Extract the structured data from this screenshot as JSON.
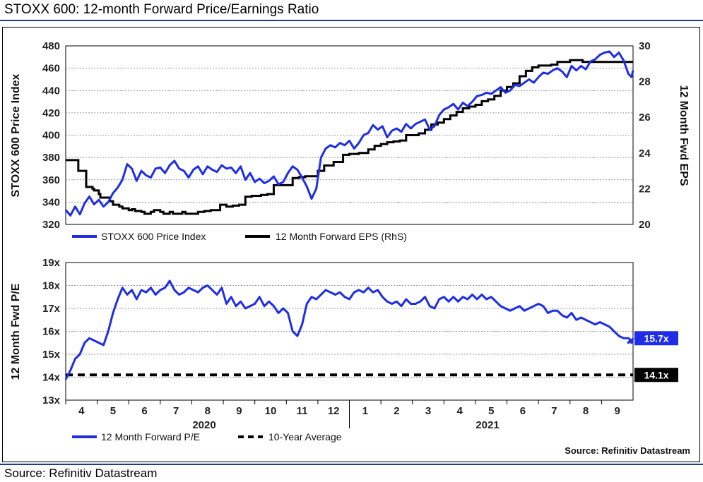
{
  "title": "STOXX 600: 12-month Forward Price/Earnings Ratio",
  "footer_source": "Source: Refinitiv Datastream",
  "inner_source": "Source: Refinitiv Datastream",
  "colors": {
    "price": "#1f2ee6",
    "eps": "#000000",
    "pe": "#1f2ee6",
    "avg": "#000000",
    "rule": "#1f3a93",
    "callout_blue": "#1f2ee6",
    "callout_black": "#000000"
  },
  "chart_data": [
    {
      "type": "line",
      "ylabel_left": "STOXX 600 Price Index",
      "ylabel_right": "12 Month Fwd EPS",
      "ylim_left": [
        320,
        480
      ],
      "ylim_right": [
        20,
        30
      ],
      "yticks_left": [
        "480",
        "460",
        "440",
        "420",
        "400",
        "380",
        "360",
        "340",
        "320"
      ],
      "yticks_right": [
        "30",
        "28",
        "26",
        "24",
        "22",
        "20"
      ],
      "xlim": [
        0,
        18
      ],
      "grid": true,
      "legend": "bottom-left",
      "series": [
        {
          "name": "STOXX 600 Price Index",
          "axis": "left",
          "x": [
            0.0,
            0.15,
            0.3,
            0.45,
            0.6,
            0.75,
            0.9,
            1.05,
            1.2,
            1.35,
            1.5,
            1.65,
            1.8,
            1.95,
            2.1,
            2.25,
            2.4,
            2.55,
            2.7,
            2.85,
            3.0,
            3.15,
            3.3,
            3.45,
            3.6,
            3.75,
            3.9,
            4.05,
            4.2,
            4.35,
            4.5,
            4.65,
            4.8,
            4.95,
            5.1,
            5.25,
            5.4,
            5.55,
            5.7,
            5.85,
            6.0,
            6.15,
            6.3,
            6.45,
            6.6,
            6.75,
            6.9,
            7.05,
            7.2,
            7.35,
            7.5,
            7.65,
            7.8,
            7.95,
            8.1,
            8.25,
            8.4,
            8.55,
            8.7,
            8.85,
            9.0,
            9.15,
            9.3,
            9.45,
            9.6,
            9.75,
            9.9,
            10.05,
            10.2,
            10.35,
            10.5,
            10.65,
            10.8,
            10.95,
            11.1,
            11.25,
            11.4,
            11.55,
            11.7,
            11.85,
            12.0,
            12.15,
            12.3,
            12.45,
            12.6,
            12.75,
            12.9,
            13.05,
            13.2,
            13.35,
            13.5,
            13.65,
            13.8,
            13.95,
            14.1,
            14.25,
            14.4,
            14.55,
            14.7,
            14.85,
            15.0,
            15.15,
            15.3,
            15.45,
            15.6,
            15.75,
            15.9,
            16.05,
            16.2,
            16.35,
            16.5,
            16.65,
            16.8,
            16.95,
            17.1,
            17.25,
            17.4,
            17.55,
            17.7,
            17.85
          ],
          "values": [
            333,
            328,
            336,
            329,
            339,
            345,
            338,
            342,
            336,
            340,
            348,
            353,
            360,
            374,
            370,
            359,
            368,
            364,
            362,
            370,
            371,
            366,
            373,
            377,
            370,
            368,
            362,
            369,
            372,
            365,
            372,
            369,
            367,
            373,
            370,
            371,
            366,
            372,
            360,
            366,
            358,
            361,
            357,
            359,
            363,
            356,
            358,
            366,
            372,
            369,
            362,
            354,
            343,
            352,
            380,
            388,
            391,
            389,
            393,
            391,
            395,
            388,
            393,
            400,
            402,
            409,
            405,
            408,
            398,
            404,
            406,
            403,
            410,
            406,
            410,
            412,
            414,
            405,
            408,
            418,
            423,
            425,
            428,
            423,
            429,
            426,
            430,
            435,
            436,
            438,
            437,
            440,
            443,
            438,
            440,
            445,
            444,
            447,
            450,
            447,
            452,
            456,
            455,
            458,
            460,
            457,
            452,
            462,
            458,
            462,
            459,
            466,
            468,
            472,
            474,
            475,
            470,
            474,
            467,
            455
          ],
          "x_extra": [
            17.95,
            18.0
          ],
          "values_extra": [
            452,
            458
          ]
        },
        {
          "name": "12 Month Forward EPS (RhS)",
          "axis": "right",
          "x": [
            0.0,
            0.35,
            0.4,
            0.6,
            0.65,
            0.85,
            0.9,
            1.05,
            1.1,
            1.4,
            1.5,
            1.7,
            1.8,
            2.0,
            2.1,
            2.2,
            2.4,
            2.5,
            2.7,
            2.8,
            3.0,
            3.1,
            3.3,
            3.4,
            3.7,
            3.8,
            4.0,
            4.2,
            4.4,
            4.6,
            4.8,
            4.9,
            5.1,
            5.3,
            5.5,
            5.7,
            5.9,
            6.0,
            6.2,
            6.4,
            6.6,
            6.8,
            7.0,
            7.2,
            7.4,
            7.6,
            7.8,
            8.0,
            8.2,
            8.5,
            8.8,
            9.0,
            9.3,
            9.6,
            9.8,
            10.0,
            10.2,
            10.4,
            10.6,
            10.8,
            11.0,
            11.2,
            11.4,
            11.6,
            11.8,
            12.0,
            12.2,
            12.4,
            12.6,
            12.8,
            13.0,
            13.2,
            13.4,
            13.6,
            13.8,
            14.0,
            14.2,
            14.4,
            14.6,
            14.8,
            15.0,
            15.2,
            15.4,
            15.6,
            15.8,
            16.0,
            16.2,
            16.4,
            16.6,
            16.8,
            17.0,
            17.2,
            17.4,
            17.6,
            17.8,
            18.0
          ],
          "values": [
            23.6,
            23.6,
            23.0,
            23.0,
            22.1,
            22.0,
            21.9,
            21.7,
            21.5,
            21.3,
            21.1,
            21.0,
            20.9,
            20.8,
            20.85,
            20.75,
            20.7,
            20.6,
            20.7,
            20.8,
            20.7,
            20.6,
            20.7,
            20.6,
            20.7,
            20.6,
            20.6,
            20.7,
            20.75,
            20.8,
            20.8,
            21.1,
            21.0,
            21.05,
            21.1,
            21.55,
            21.6,
            21.6,
            21.65,
            21.7,
            22.2,
            22.2,
            22.2,
            22.6,
            22.65,
            22.7,
            22.7,
            23.0,
            23.3,
            23.5,
            23.9,
            23.95,
            24.0,
            24.2,
            24.4,
            24.5,
            24.6,
            24.65,
            24.7,
            25.0,
            25.0,
            25.1,
            25.3,
            25.6,
            25.7,
            25.9,
            26.1,
            26.3,
            26.5,
            26.6,
            26.7,
            26.9,
            27.0,
            27.2,
            27.5,
            27.7,
            27.9,
            28.3,
            28.6,
            28.8,
            28.9,
            28.9,
            28.95,
            29.1,
            29.1,
            29.2,
            29.2,
            29.1,
            29.1,
            29.1,
            29.1,
            29.1,
            29.1,
            29.1,
            29.1,
            29.1
          ]
        }
      ]
    },
    {
      "type": "line",
      "ylabel": "12 Month Fwd P/E",
      "ylim": [
        13,
        19
      ],
      "yticks": [
        "19x",
        "18x",
        "17x",
        "16x",
        "15x",
        "14x",
        "13x"
      ],
      "xlim": [
        0,
        18
      ],
      "xticks": [
        "4",
        "5",
        "6",
        "7",
        "8",
        "9",
        "10",
        "11",
        "12",
        "1",
        "2",
        "3",
        "4",
        "5",
        "6",
        "7",
        "8",
        "9"
      ],
      "year_labels": [
        "2020",
        "2021"
      ],
      "legend": "bottom-left",
      "series": [
        {
          "name": "12 Month Forward P/E",
          "x": [
            0.0,
            0.15,
            0.3,
            0.45,
            0.6,
            0.75,
            0.9,
            1.05,
            1.2,
            1.35,
            1.5,
            1.65,
            1.8,
            1.95,
            2.1,
            2.25,
            2.4,
            2.55,
            2.7,
            2.85,
            3.0,
            3.15,
            3.3,
            3.45,
            3.6,
            3.75,
            3.9,
            4.05,
            4.2,
            4.35,
            4.5,
            4.65,
            4.8,
            4.95,
            5.1,
            5.25,
            5.4,
            5.55,
            5.7,
            5.85,
            6.0,
            6.15,
            6.3,
            6.45,
            6.6,
            6.75,
            6.9,
            7.05,
            7.2,
            7.35,
            7.5,
            7.65,
            7.8,
            7.95,
            8.1,
            8.25,
            8.4,
            8.55,
            8.7,
            8.85,
            9.0,
            9.15,
            9.3,
            9.45,
            9.6,
            9.75,
            9.9,
            10.05,
            10.2,
            10.35,
            10.5,
            10.65,
            10.8,
            10.95,
            11.1,
            11.25,
            11.4,
            11.55,
            11.7,
            11.85,
            12.0,
            12.15,
            12.3,
            12.45,
            12.6,
            12.75,
            12.9,
            13.05,
            13.2,
            13.35,
            13.5,
            13.65,
            13.8,
            13.95,
            14.1,
            14.25,
            14.4,
            14.55,
            14.7,
            14.85,
            15.0,
            15.15,
            15.3,
            15.45,
            15.6,
            15.75,
            15.9,
            16.05,
            16.2,
            16.35,
            16.5,
            16.65,
            16.8,
            16.95,
            17.1,
            17.25,
            17.4,
            17.55,
            17.7,
            17.85,
            17.95
          ],
          "values": [
            13.9,
            14.3,
            14.8,
            15.0,
            15.5,
            15.7,
            15.6,
            15.5,
            15.4,
            16.0,
            16.8,
            17.4,
            17.9,
            17.6,
            17.8,
            17.4,
            17.8,
            17.7,
            17.9,
            17.6,
            17.8,
            17.9,
            18.2,
            17.8,
            17.6,
            17.7,
            17.9,
            17.8,
            17.7,
            17.9,
            18.0,
            17.8,
            17.6,
            17.9,
            17.2,
            17.5,
            17.1,
            17.3,
            17.0,
            17.1,
            17.2,
            17.5,
            17.1,
            17.3,
            17.1,
            16.8,
            17.0,
            16.8,
            16.0,
            15.8,
            16.3,
            17.2,
            17.5,
            17.4,
            17.6,
            17.8,
            17.7,
            17.6,
            17.7,
            17.5,
            17.4,
            17.7,
            17.8,
            17.7,
            17.9,
            17.7,
            17.8,
            17.5,
            17.3,
            17.2,
            17.3,
            17.1,
            17.4,
            17.2,
            17.2,
            17.3,
            17.5,
            17.1,
            17.0,
            17.4,
            17.5,
            17.3,
            17.5,
            17.3,
            17.5,
            17.4,
            17.6,
            17.4,
            17.6,
            17.4,
            17.5,
            17.3,
            17.1,
            17.0,
            16.9,
            17.0,
            17.1,
            16.9,
            17.0,
            17.1,
            17.2,
            17.1,
            16.8,
            16.9,
            16.9,
            16.7,
            16.6,
            16.8,
            16.5,
            16.6,
            16.5,
            16.4,
            16.3,
            16.4,
            16.3,
            16.2,
            16.0,
            15.8,
            15.7,
            15.7,
            15.6
          ],
          "x_extra": [
            17.85,
            17.9,
            17.95,
            18.0
          ],
          "values_extra": [
            15.5,
            15.6,
            15.5,
            15.7
          ]
        },
        {
          "name": "10-Year Average",
          "x": [
            0,
            18
          ],
          "values": [
            14.1,
            14.1
          ]
        }
      ],
      "callouts": [
        {
          "label": "15.7x",
          "value": 15.7,
          "style": "blue"
        },
        {
          "label": "14.1x",
          "value": 14.1,
          "style": "black"
        }
      ]
    }
  ]
}
